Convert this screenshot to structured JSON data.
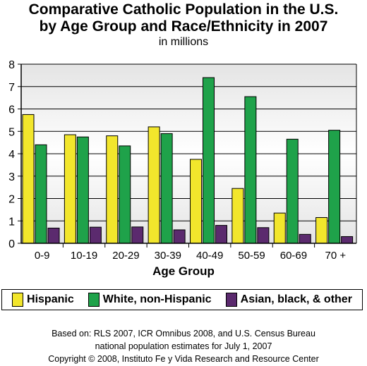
{
  "chart_data": {
    "type": "bar",
    "title": "Comparative Catholic Population in the U.S.",
    "title_line2": "by Age Group and Race/Ethnicity in 2007",
    "subtitle": "in millions",
    "xlabel": "Age Group",
    "ylabel": "",
    "ylim": [
      0,
      8
    ],
    "yticks": [
      "0",
      "1",
      "2",
      "3",
      "4",
      "5",
      "6",
      "7",
      "8"
    ],
    "grid": true,
    "legend_position": "bottom",
    "categories": [
      "0-9",
      "10-19",
      "20-29",
      "30-39",
      "40-49",
      "50-59",
      "60-69",
      "70 +"
    ],
    "series": [
      {
        "name": "Hispanic",
        "color": "#f2e62c",
        "values": [
          5.75,
          4.85,
          4.8,
          5.2,
          3.75,
          2.45,
          1.35,
          1.15
        ]
      },
      {
        "name": "White, non-Hispanic",
        "color": "#1fa24a",
        "values": [
          4.4,
          4.75,
          4.35,
          4.9,
          7.4,
          6.55,
          4.65,
          5.05
        ]
      },
      {
        "name": "Asian, black, & other",
        "color": "#5b2a6e",
        "values": [
          0.68,
          0.72,
          0.73,
          0.6,
          0.8,
          0.7,
          0.4,
          0.3
        ]
      }
    ]
  },
  "footer": {
    "line1": "Based on: RLS 2007, ICR Omnibus 2008, and U.S. Census Bureau",
    "line2": "national population estimates for July 1, 2007",
    "line3": "Copyright © 2008, Instituto Fe y Vida Research and Resource Center"
  }
}
